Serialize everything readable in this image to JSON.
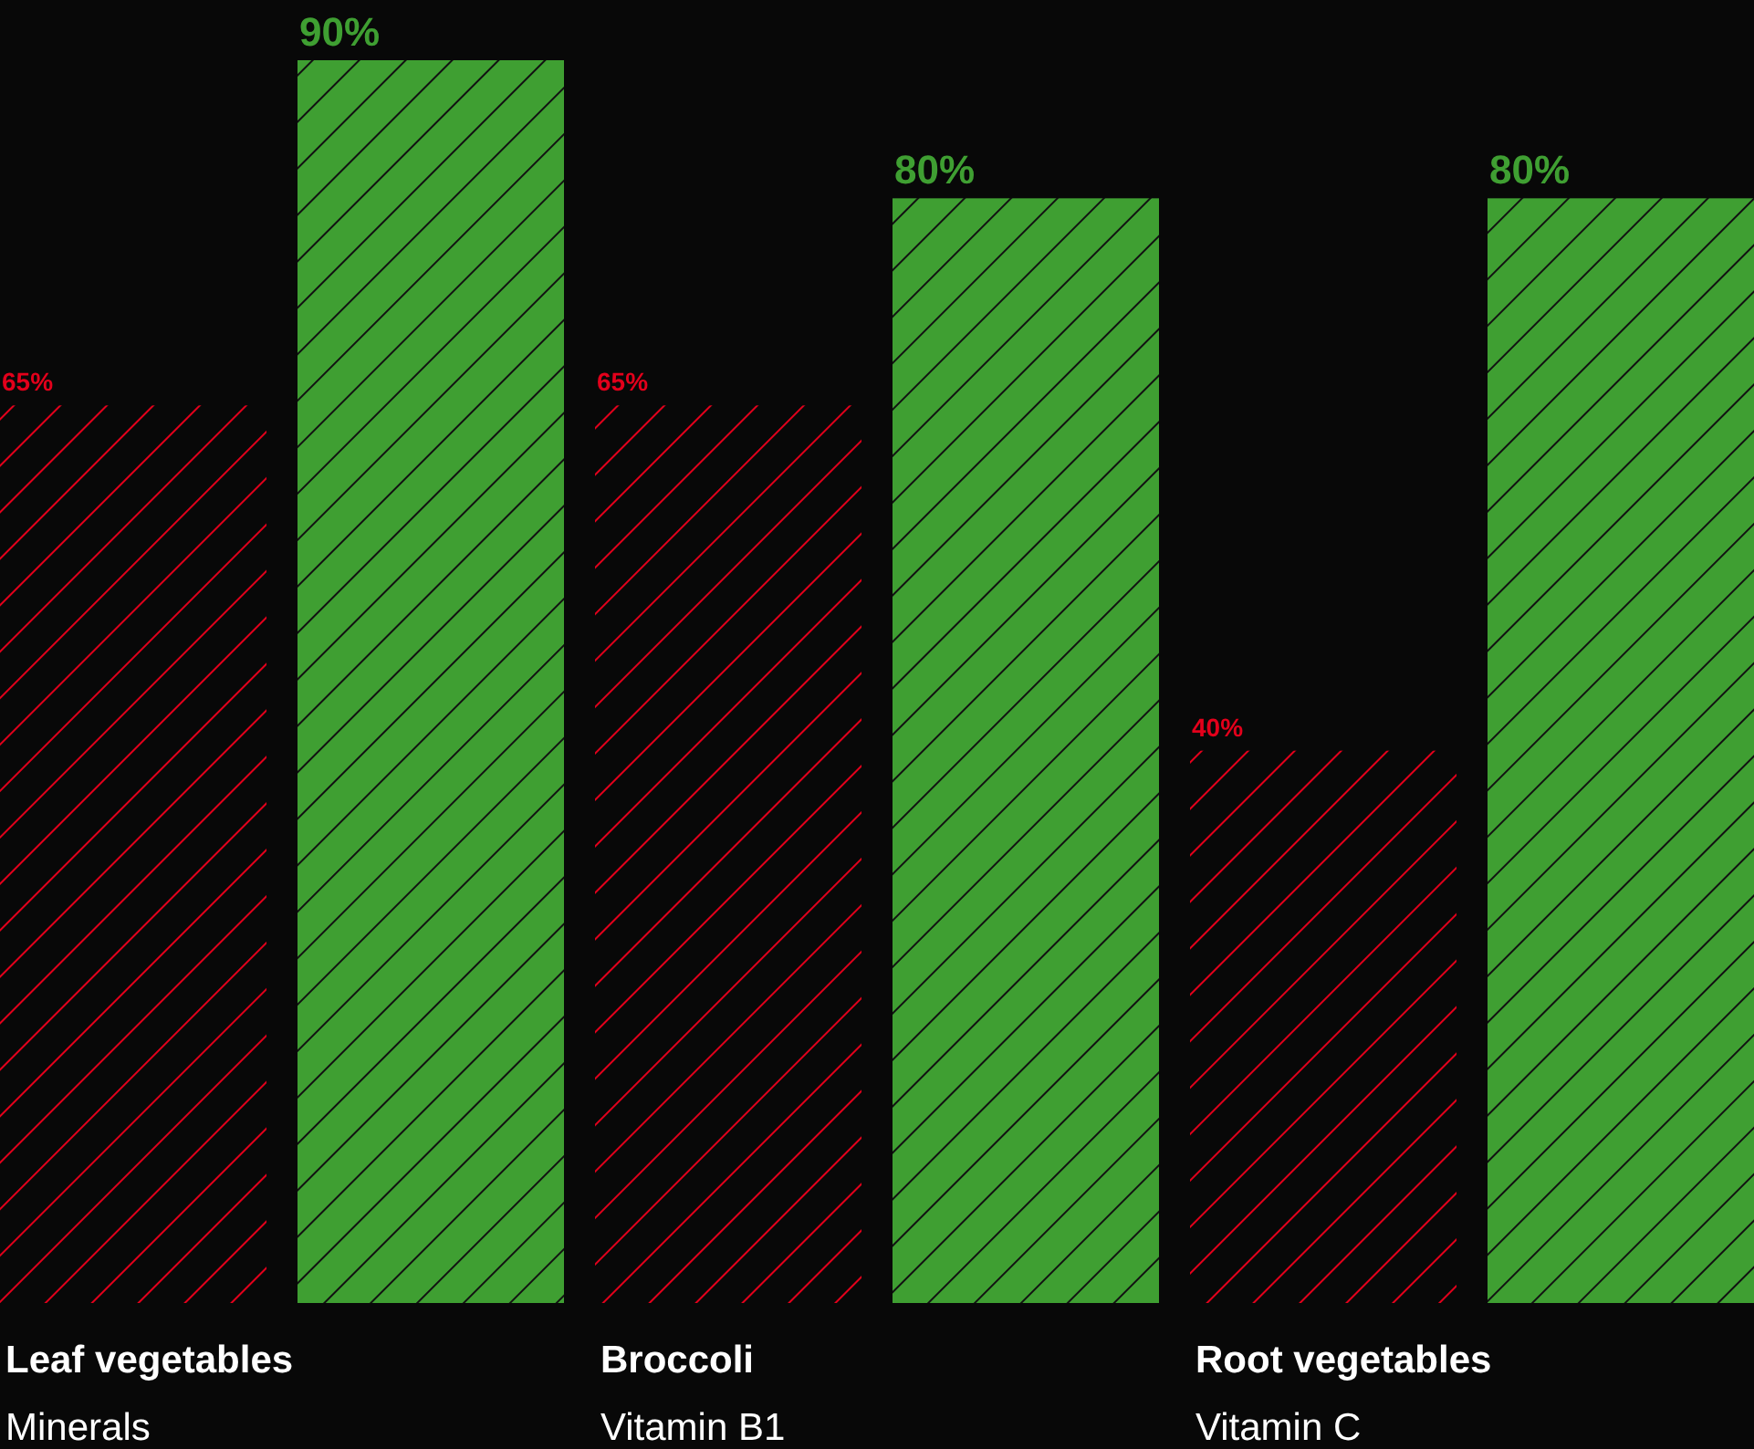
{
  "chart_data": {
    "type": "bar",
    "categories": [
      "Leaf vegetables\nMinerals",
      "Broccoli\nVitamin B1",
      "Root vegetables\nVitamin C"
    ],
    "series": [
      {
        "color": "#e3001b",
        "values": [
          65,
          65,
          40
        ],
        "value_labels": [
          "65%",
          "65%",
          "40%"
        ]
      },
      {
        "color": "#3f9f32",
        "values": [
          90,
          80,
          80
        ],
        "value_labels": [
          "90%",
          "80%",
          "80%"
        ]
      }
    ],
    "tick_labels": "x"
  }
}
